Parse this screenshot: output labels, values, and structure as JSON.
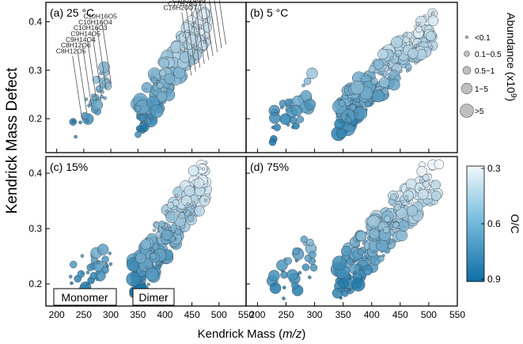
{
  "figure": {
    "y_axis_label": "Kendrick Mass Defect",
    "x_axis_label_prefix": "Kendrick Mass (",
    "x_axis_label_italic": "m/z",
    "x_axis_label_suffix": ")"
  },
  "chart_data": [
    {
      "type": "scatter",
      "panel": "a",
      "title": "(a) 25 °C",
      "xlim": [
        180,
        550
      ],
      "ylim": [
        0.13,
        0.44
      ],
      "xticks": [],
      "yticks": [
        "0.2",
        "0.3",
        "0.4"
      ],
      "series": [
        {
          "name": "Monomer",
          "x_range": [
            230,
            295
          ],
          "y_range": [
            0.16,
            0.29
          ]
        },
        {
          "name": "Dimer",
          "x_range": [
            350,
            480
          ],
          "y_range": [
            0.2,
            0.41
          ]
        }
      ],
      "annotations": {
        "monomer_formulas": [
          "C8H12O5",
          "C8H12O6",
          "C9H14O4",
          "C9H14O5",
          "C10H16O3",
          "C10H16O4",
          "C10H16O5"
        ],
        "dimer_formulas": [
          "C16H26O7",
          "C17H28O7",
          "C18H28O8",
          "C19H30O8",
          "C19H28O9",
          "C19H30O11",
          "C20H30O12",
          "C20H30O13",
          "C20H32O14"
        ],
        "monomer_group_label": "",
        "dimer_group_label": ""
      }
    },
    {
      "type": "scatter",
      "panel": "b",
      "title": "(b) 5 °C",
      "xlim": [
        180,
        550
      ],
      "ylim": [
        0.13,
        0.44
      ],
      "xticks": [],
      "yticks": [],
      "series": [
        {
          "name": "Monomer",
          "x_range": [
            225,
            300
          ],
          "y_range": [
            0.18,
            0.26
          ]
        },
        {
          "name": "Dimer",
          "x_range": [
            340,
            510
          ],
          "y_range": [
            0.2,
            0.39
          ]
        }
      ]
    },
    {
      "type": "scatter",
      "panel": "c",
      "title": "(c) 15%",
      "xlim": [
        180,
        550
      ],
      "ylim": [
        0.16,
        0.43
      ],
      "xticks": [
        "200",
        "250",
        "300",
        "350",
        "400",
        "450",
        "500",
        "550"
      ],
      "yticks": [
        "0.2",
        "0.3",
        "0.4"
      ],
      "series": [
        {
          "name": "Monomer",
          "x_range": [
            225,
            300
          ],
          "y_range": [
            0.19,
            0.26
          ]
        },
        {
          "name": "Dimer",
          "x_range": [
            340,
            480
          ],
          "y_range": [
            0.2,
            0.4
          ]
        }
      ],
      "annotations": {
        "monomer_box": "Monomer",
        "dimer_box": "Dimer"
      }
    },
    {
      "type": "scatter",
      "panel": "d",
      "title": "(d) 75%",
      "xlim": [
        180,
        550
      ],
      "ylim": [
        0.16,
        0.43
      ],
      "xticks": [
        "200",
        "250",
        "300",
        "350",
        "400",
        "450",
        "500",
        "550"
      ],
      "yticks": [],
      "series": [
        {
          "name": "Monomer",
          "x_range": [
            225,
            300
          ],
          "y_range": [
            0.18,
            0.26
          ]
        },
        {
          "name": "Dimer",
          "x_range": [
            340,
            520
          ],
          "y_range": [
            0.2,
            0.41
          ]
        }
      ]
    }
  ],
  "size_legend": {
    "title": "Abundance (x10",
    "title_superscript": "9",
    "title_suffix": ")",
    "entries": [
      "<0.1",
      "0.1~0.5",
      "0.5~1",
      "1~5",
      ">5"
    ]
  },
  "color_legend": {
    "title": "O/C",
    "ticks": [
      "0.3",
      "0.6",
      "0.9"
    ],
    "low_color": "#f2f8fb",
    "high_color": "#0e6fa4"
  }
}
